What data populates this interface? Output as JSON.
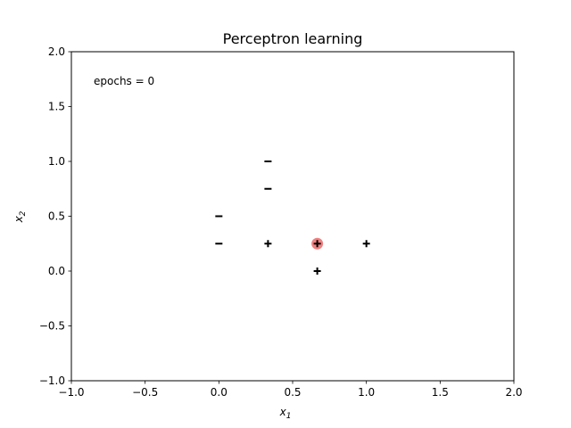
{
  "chart_data": {
    "type": "scatter",
    "title": "Perceptron learning",
    "xlabel": "x",
    "xlabel_sub": "1",
    "ylabel": "x",
    "ylabel_sub": "2",
    "xlim": [
      -1.0,
      2.0
    ],
    "ylim": [
      -1.0,
      2.0
    ],
    "xticks": [
      -1.0,
      -0.5,
      0.0,
      0.5,
      1.0,
      1.5,
      2.0
    ],
    "xtick_labels": [
      "−1.0",
      "−0.5",
      "0.0",
      "0.5",
      "1.0",
      "1.5",
      "2.0"
    ],
    "yticks": [
      -1.0,
      -0.5,
      0.0,
      0.5,
      1.0,
      1.5,
      2.0
    ],
    "ytick_labels": [
      "−1.0",
      "−0.5",
      "0.0",
      "0.5",
      "1.0",
      "1.5",
      "2.0"
    ],
    "grid": false,
    "annotation": "epochs = 0",
    "negative_points": [
      {
        "x": 0.333,
        "y": 1.0
      },
      {
        "x": 0.333,
        "y": 0.75
      },
      {
        "x": 0.0,
        "y": 0.5
      },
      {
        "x": 0.0,
        "y": 0.25
      }
    ],
    "positive_points": [
      {
        "x": 0.333,
        "y": 0.25
      },
      {
        "x": 0.667,
        "y": 0.25
      },
      {
        "x": 1.0,
        "y": 0.25
      },
      {
        "x": 0.667,
        "y": 0.0
      }
    ],
    "highlighted_point": {
      "x": 0.667,
      "y": 0.25
    },
    "highlight_color": "#f08080",
    "marker_color": "#000000"
  }
}
